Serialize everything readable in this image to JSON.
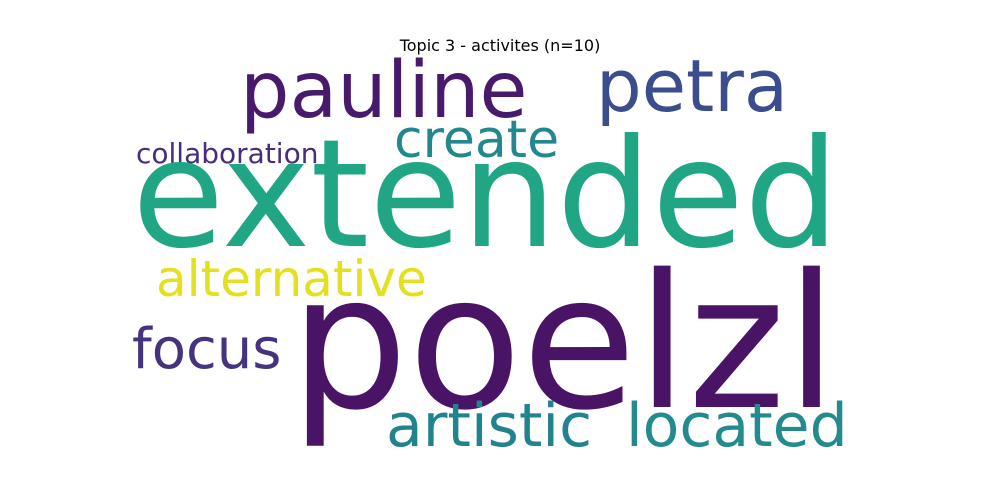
{
  "title": "Topic 3 - activites (n=10)",
  "words": [
    {
      "id": "extended",
      "text": "extended",
      "color": "#21a685"
    },
    {
      "id": "poelzl",
      "text": "poelzl",
      "color": "#4a1466"
    },
    {
      "id": "pauline",
      "text": "pauline",
      "color": "#481a6c"
    },
    {
      "id": "petra",
      "text": "petra",
      "color": "#3b4d8c"
    },
    {
      "id": "create",
      "text": "create",
      "color": "#23878e"
    },
    {
      "id": "collaboration",
      "text": "collaboration",
      "color": "#472d7b"
    },
    {
      "id": "alternative",
      "text": "alternative",
      "color": "#e3e11f"
    },
    {
      "id": "focus",
      "text": "focus",
      "color": "#46327e"
    },
    {
      "id": "artistic",
      "text": "artistic",
      "color": "#21838e"
    },
    {
      "id": "located",
      "text": "located",
      "color": "#238a8d"
    }
  ]
}
